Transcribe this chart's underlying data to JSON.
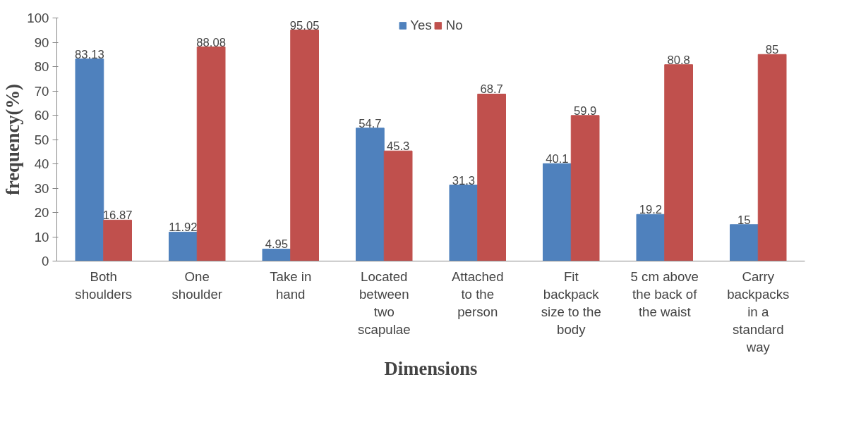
{
  "chart_data": {
    "type": "bar",
    "xlabel": "Dimensions",
    "ylabel": "frequency(%)",
    "categories": [
      "Both\nshoulders",
      "One\nshoulder",
      "Take in\nhand",
      "Located\nbetween\ntwo\nscapulae",
      "Attached\nto the\nperson",
      "Fit\nbackpack\nsize to the\nbody",
      "5 cm above\nthe back of\nthe waist",
      "Carry\nbackpacks\nin a\nstandard\nway"
    ],
    "series": [
      {
        "name": "Yes",
        "color": "#4f81bd",
        "values": [
          83.13,
          11.92,
          4.95,
          54.7,
          31.3,
          40.1,
          19.2,
          15
        ]
      },
      {
        "name": "No",
        "color": "#c0504d",
        "values": [
          16.87,
          88.08,
          95.05,
          45.3,
          68.7,
          59.9,
          80.8,
          85
        ]
      }
    ],
    "ylim": [
      0,
      100
    ],
    "yticks": [
      0,
      10,
      20,
      30,
      40,
      50,
      60,
      70,
      80,
      90,
      100
    ],
    "grid": false,
    "data_labels": true,
    "legend": "top"
  }
}
